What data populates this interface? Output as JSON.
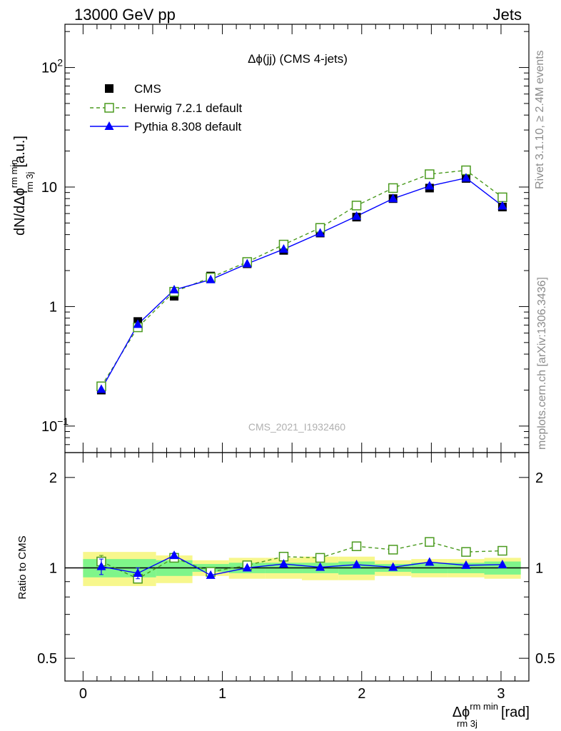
{
  "header": {
    "left": "13000 GeV pp",
    "right": "Jets"
  },
  "side_texts": {
    "rivet": "Rivet 3.1.10, ≥ 2.4M events",
    "mcplots": "mcplots.cern.ch [arXiv:1306.3436]"
  },
  "watermark": "CMS_2021_I1932460",
  "chart_data": [
    {
      "type": "line",
      "title": "Δϕ(jj) (CMS 4-jets)",
      "ylabel_main": "dN/dΔϕ",
      "ylabel_sup": "rm min",
      "ylabel_sub": "rm 3j",
      "ylabel_unit": "[a.u.]",
      "yscale": "log",
      "xlim": [
        -0.13,
        3.2
      ],
      "ylim": [
        0.06,
        230
      ],
      "yticks": [
        {
          "value": 0.1,
          "base": "10",
          "exp": "−1"
        },
        {
          "value": 1,
          "base": "1",
          "exp": ""
        },
        {
          "value": 10,
          "base": "10",
          "exp": ""
        },
        {
          "value": 100,
          "base": "10",
          "exp": "2"
        }
      ],
      "legend_position": "top-left",
      "x": [
        0.131,
        0.393,
        0.654,
        0.916,
        1.178,
        1.44,
        1.702,
        1.963,
        2.225,
        2.487,
        2.749,
        3.01
      ],
      "series": [
        {
          "name": "CMS",
          "style": "data",
          "color": "#000000",
          "values": [
            0.2,
            0.75,
            1.22,
            1.8,
            2.28,
            2.95,
            4.12,
            5.6,
            8.0,
            9.8,
            11.8,
            6.8
          ]
        },
        {
          "name": "Herwig 7.2.1 default",
          "style": "dashed-open-square",
          "color": "#4a9a1e",
          "values": [
            0.215,
            0.67,
            1.33,
            1.75,
            2.36,
            3.3,
            4.55,
            7.0,
            9.8,
            12.8,
            13.8,
            8.2
          ]
        },
        {
          "name": "Pythia 8.308 default",
          "style": "solid-triangle",
          "color": "#0000ff",
          "values": [
            0.203,
            0.71,
            1.38,
            1.68,
            2.28,
            3.02,
            4.12,
            5.7,
            8.0,
            10.2,
            11.9,
            6.95
          ]
        }
      ]
    },
    {
      "type": "line",
      "title": "",
      "ylabel": "Ratio to CMS",
      "xlabel_main": "Δϕ",
      "xlabel_sup": "rm min",
      "xlabel_sub": "rm 3j",
      "xlabel_unit": "[rad]",
      "yscale": "log",
      "xlim": [
        -0.13,
        3.2
      ],
      "ylim": [
        0.42,
        2.42
      ],
      "xticks": [
        0,
        1,
        2,
        3
      ],
      "yticks": [
        0.5,
        1,
        2
      ],
      "ytick_labels": [
        "0.5",
        "1",
        "2"
      ],
      "xtick_labels": [
        "0",
        "1",
        "2",
        "3"
      ],
      "reference": 1,
      "bin_edges": [
        0.0,
        0.262,
        0.524,
        0.785,
        1.047,
        1.309,
        1.571,
        1.833,
        2.094,
        2.356,
        2.618,
        2.88,
        3.142
      ],
      "band_inner": {
        "color": "#7ff58a",
        "lo": [
          0.93,
          0.93,
          0.94,
          0.97,
          0.96,
          0.96,
          0.96,
          0.95,
          0.97,
          0.96,
          0.96,
          0.95
        ],
        "hi": [
          1.07,
          1.07,
          1.06,
          1.03,
          1.04,
          1.04,
          1.04,
          1.05,
          1.03,
          1.04,
          1.04,
          1.05
        ]
      },
      "band_outer": {
        "color": "#f7f78c",
        "lo": [
          0.87,
          0.87,
          0.89,
          0.94,
          0.92,
          0.92,
          0.91,
          0.91,
          0.94,
          0.93,
          0.93,
          0.92
        ],
        "hi": [
          1.13,
          1.13,
          1.1,
          1.06,
          1.08,
          1.08,
          1.09,
          1.09,
          1.06,
          1.07,
          1.07,
          1.08
        ]
      },
      "x": [
        0.131,
        0.393,
        0.654,
        0.916,
        1.178,
        1.44,
        1.702,
        1.963,
        2.225,
        2.487,
        2.749,
        3.01
      ],
      "series": [
        {
          "name": "Herwig 7.2.1 default",
          "style": "dashed-open-square",
          "color": "#4a9a1e",
          "values": [
            1.05,
            0.92,
            1.08,
            0.97,
            1.02,
            1.09,
            1.08,
            1.18,
            1.15,
            1.22,
            1.13,
            1.14
          ],
          "errors": [
            0.05,
            0.02,
            0.02,
            0.0,
            0.0,
            0.0,
            0.0,
            0.0,
            0.0,
            0.0,
            0.0,
            0.0
          ]
        },
        {
          "name": "Pythia 8.308 default",
          "style": "solid-triangle",
          "color": "#0000ff",
          "values": [
            1.01,
            0.96,
            1.1,
            0.945,
            1.0,
            1.03,
            1.005,
            1.025,
            1.005,
            1.045,
            1.02,
            1.025
          ],
          "errors": [
            0.06,
            0.04,
            0.02,
            0.0,
            0.0,
            0.0,
            0.0,
            0.0,
            0.0,
            0.0,
            0.0,
            0.0
          ]
        }
      ]
    }
  ]
}
